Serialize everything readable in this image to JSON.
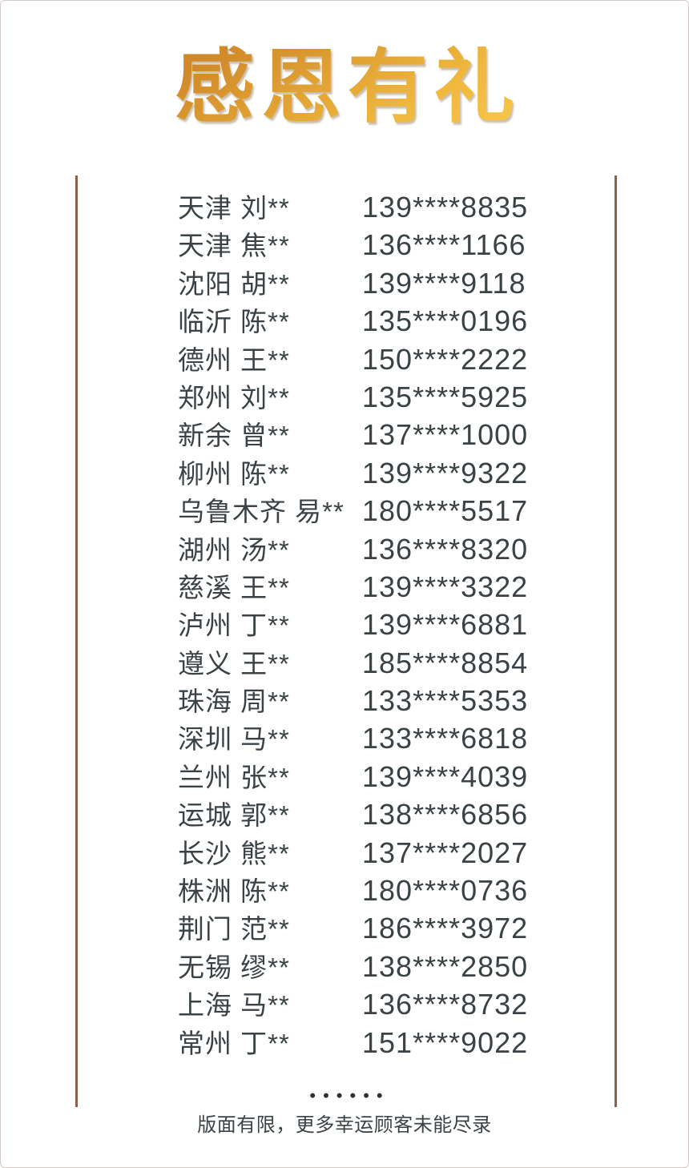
{
  "page": {
    "title": "感恩有礼"
  },
  "list": {
    "rows": [
      {
        "name": "天津 刘**",
        "phone": "139****8835"
      },
      {
        "name": "天津 焦**",
        "phone": "136****1166"
      },
      {
        "name": "沈阳 胡**",
        "phone": "139****9118"
      },
      {
        "name": "临沂 陈**",
        "phone": "135****0196"
      },
      {
        "name": "德州 王**",
        "phone": "150****2222"
      },
      {
        "name": "郑州 刘**",
        "phone": "135****5925"
      },
      {
        "name": "新余 曾**",
        "phone": "137****1000"
      },
      {
        "name": "柳州 陈**",
        "phone": "139****9322"
      },
      {
        "name": "乌鲁木齐 易**",
        "phone": "180****5517"
      },
      {
        "name": "湖州 汤**",
        "phone": "136****8320"
      },
      {
        "name": "慈溪 王**",
        "phone": "139****3322"
      },
      {
        "name": "泸州 丁**",
        "phone": "139****6881"
      },
      {
        "name": "遵义 王**",
        "phone": "185****8854"
      },
      {
        "name": "珠海 周**",
        "phone": "133****5353"
      },
      {
        "name": "深圳 马**",
        "phone": "133****6818"
      },
      {
        "name": "兰州 张**",
        "phone": "139****4039"
      },
      {
        "name": "运城 郭**",
        "phone": "138****6856"
      },
      {
        "name": "长沙 熊**",
        "phone": "137****2027"
      },
      {
        "name": "株洲 陈**",
        "phone": "180****0736"
      },
      {
        "name": "荆门 范**",
        "phone": "186****3972"
      },
      {
        "name": "无锡 缪**",
        "phone": "138****2850"
      },
      {
        "name": "上海 马**",
        "phone": "136****8732"
      },
      {
        "name": "常州 丁**",
        "phone": "151****9022"
      }
    ]
  },
  "footer": {
    "dots": "••••••",
    "note": "版面有限，更多幸运顾客未能尽录"
  },
  "colors": {
    "title_gradient_start": "#b9701f",
    "title_gradient_end": "#ffd95c",
    "body_text": "#3b4245",
    "vertical_rule": "#8a6250",
    "page_border": "#d5caca"
  }
}
